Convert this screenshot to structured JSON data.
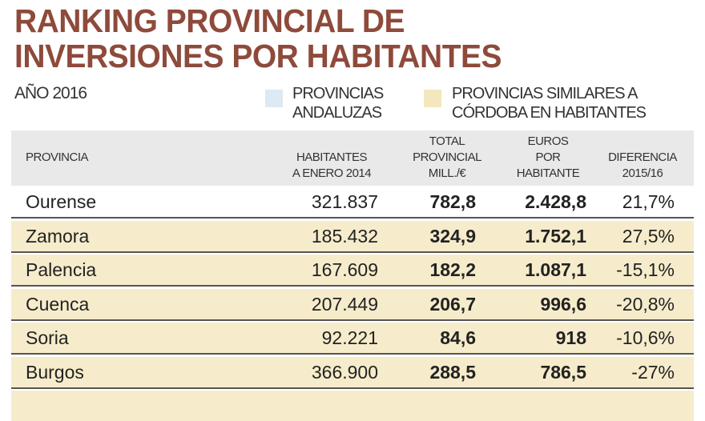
{
  "title": [
    "RANKING PROVINCIAL DE",
    "INVERSIONES POR HABITANTES"
  ],
  "year": "AÑO 2016",
  "legend": [
    {
      "label1": "PROVINCIAS",
      "label2": "ANDALUZAS",
      "color": "#dde9f3"
    },
    {
      "label1": "PROVINCIAS SIMILARES A",
      "label2": "CÓRDOBA EN HABITANTES",
      "color": "#f3e7bd"
    }
  ],
  "headers": {
    "provincia": "PROVINCIA",
    "habitantes": [
      "HABITANTES",
      "A ENERO 2014"
    ],
    "total": [
      "TOTAL",
      "PROVINCIAL",
      "MILL./€"
    ],
    "euros": [
      "EUROS",
      "POR",
      "HABITANTE"
    ],
    "diferencia": [
      "DIFERENCIA",
      "2015/16"
    ]
  },
  "rows": [
    {
      "provincia": "Ourense",
      "habitantes": "321.837",
      "total": "782,8",
      "euros": "2.428,8",
      "diferencia": "21,7%"
    },
    {
      "provincia": "Zamora",
      "habitantes": "185.432",
      "total": "324,9",
      "euros": "1.752,1",
      "diferencia": "27,5%"
    },
    {
      "provincia": "Palencia",
      "habitantes": "167.609",
      "total": "182,2",
      "euros": "1.087,1",
      "diferencia": "-15,1%"
    },
    {
      "provincia": "Cuenca",
      "habitantes": "207.449",
      "total": "206,7",
      "euros": "996,6",
      "diferencia": "-20,8%"
    },
    {
      "provincia": "Soria",
      "habitantes": "92.221",
      "total": "84,6",
      "euros": "918",
      "diferencia": "-10,6%"
    },
    {
      "provincia": "Burgos",
      "habitantes": "366.900",
      "total": "288,5",
      "euros": "786,5",
      "diferencia": "-27%"
    }
  ]
}
